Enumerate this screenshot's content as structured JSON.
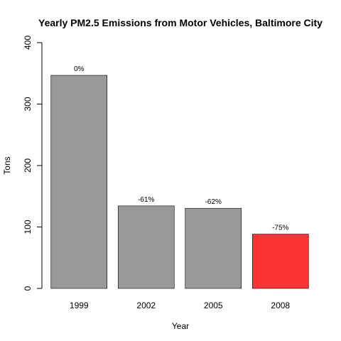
{
  "chart_data": {
    "type": "bar",
    "title": "Yearly PM2.5 Emissions from Motor Vehicles, Baltimore City",
    "xlabel": "Year",
    "ylabel": "Tons",
    "categories": [
      "1999",
      "2002",
      "2005",
      "2008"
    ],
    "values": [
      346.8,
      134.3,
      130.4,
      88.3
    ],
    "bar_labels": [
      "0%",
      "-61%",
      "-62%",
      "-75%"
    ],
    "bar_colors": [
      "#999999",
      "#999999",
      "#999999",
      "#ff3333"
    ],
    "ylim": [
      0,
      400
    ],
    "yticks": [
      0,
      100,
      200,
      300,
      400
    ],
    "grid": false,
    "legend": "none"
  }
}
